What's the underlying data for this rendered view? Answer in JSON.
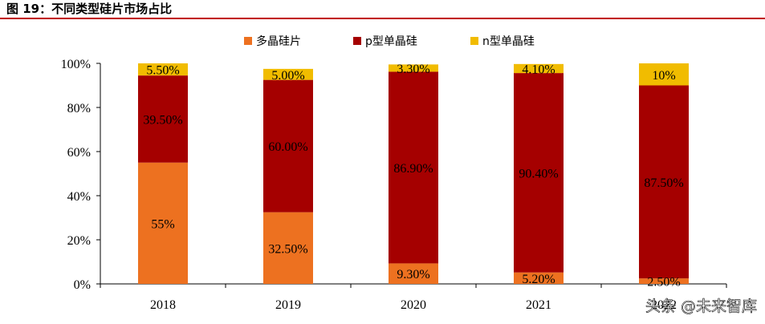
{
  "title": "图 19：不同类型硅片市场占比",
  "watermark": "头条 @未来智库",
  "colors": {
    "title_rule": "#c00000",
    "axis": "#000000"
  },
  "chart_data": {
    "type": "bar",
    "stacked": true,
    "categories": [
      "2018",
      "2019",
      "2020",
      "2021",
      "2022"
    ],
    "series": [
      {
        "name": "多晶硅片",
        "color": "#ed7120",
        "values": [
          55,
          32.5,
          9.3,
          5.2,
          2.5
        ],
        "labels": [
          "55%",
          "32.50%",
          "9.30%",
          "5.20%",
          "2.50%"
        ]
      },
      {
        "name": "p型单晶硅",
        "color": "#a50000",
        "values": [
          39.5,
          60.0,
          86.9,
          90.4,
          87.5
        ],
        "labels": [
          "39.50%",
          "60.00%",
          "86.90%",
          "90.40%",
          "87.50%"
        ]
      },
      {
        "name": "n型单晶硅",
        "color": "#f1bc00",
        "values": [
          5.5,
          5.0,
          3.3,
          4.1,
          10
        ],
        "labels": [
          "5.50%",
          "5.00%",
          "3.30%",
          "4.10%",
          "10%"
        ]
      }
    ],
    "ylim": [
      0,
      100
    ],
    "yticks": [
      "0%",
      "20%",
      "40%",
      "60%",
      "80%",
      "100%"
    ],
    "legend": "top",
    "grid": false
  }
}
